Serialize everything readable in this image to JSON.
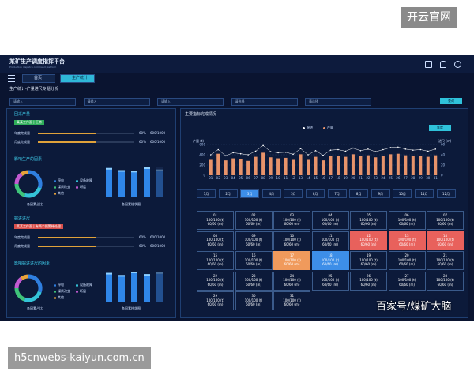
{
  "watermark_top": "开云官网",
  "watermark_bottom": "h5cnwebs-kaiyun.com.cn",
  "watermark_source": "百家号/煤矿大脑",
  "header": {
    "title": "某矿生产调度指挥平台",
    "subtitle": "Production dispatch command platform"
  },
  "tabs": [
    "首页",
    "生产统计"
  ],
  "active_tab": 1,
  "breadcrumb": "生产统计-产量进尺专题分析",
  "filters": [
    "请输入",
    "请输入",
    "请输入",
    "请选择",
    "请选择"
  ],
  "query_button": "查询",
  "left_panel": {
    "sections": [
      {
        "title": "回采产量",
        "tag": "某某工作面 | 正常",
        "tag_color": "#2fae5a",
        "progress": [
          {
            "label": "年度完成量",
            "percent": 60,
            "percent_label": "60%",
            "value_label": "600/1000"
          },
          {
            "label": "月度完成量",
            "percent": 60,
            "percent_label": "60%",
            "value_label": "600/1000"
          }
        ],
        "factor_title": "影响生产的因素",
        "legend": [
          "停电",
          "设备故障",
          "煤质改变",
          "断层",
          "其他"
        ],
        "colors": [
          "#2f7fe0",
          "#34c3d8",
          "#3fc47a",
          "#c25ad0",
          "#e8a33a"
        ],
        "donut": [
          30,
          25,
          20,
          15,
          10
        ],
        "bars": [
          95,
          88,
          86,
          97,
          90
        ],
        "donut_caption": "各因素占比",
        "bar_caption": "各因素柱状图"
      },
      {
        "title": "掘进进尺",
        "tag": "某某工作面 | 有两个报警待处理",
        "tag_color": "#d9504c",
        "progress": [
          {
            "label": "年度完成量",
            "percent": 60,
            "percent_label": "60%",
            "value_label": "600/1000"
          },
          {
            "label": "月度完成量",
            "percent": 60,
            "percent_label": "60%",
            "value_label": "600/1000"
          }
        ],
        "factor_title": "影响掘进进尺的因素",
        "legend": [
          "停电",
          "设备故障",
          "煤质改变",
          "断层",
          "其他"
        ],
        "colors": [
          "#2f7fe0",
          "#34c3d8",
          "#3fc47a",
          "#c25ad0",
          "#e8a33a"
        ],
        "donut": [
          30,
          25,
          20,
          15,
          10
        ],
        "bars": [
          92,
          85,
          96,
          88,
          94
        ],
        "donut_caption": "各因素占比",
        "bar_caption": "各因素柱状图"
      }
    ]
  },
  "chart_data": {
    "type": "bar_line",
    "title": "主要指标完成情况",
    "button": "年度",
    "y_label": "产量 (t)",
    "y2_label": "进尺 (m)",
    "categories": [
      "01",
      "02",
      "03",
      "04",
      "05",
      "06",
      "07",
      "08",
      "09",
      "10",
      "11",
      "12",
      "13",
      "14",
      "15",
      "16",
      "17",
      "18",
      "19",
      "20",
      "21",
      "22",
      "23",
      "24",
      "25",
      "26",
      "27",
      "28",
      "29",
      "30",
      "31"
    ],
    "series": [
      {
        "name": "掘进",
        "type": "line",
        "axis": "y2",
        "color": "#ffffff",
        "values": [
          40,
          50,
          38,
          44,
          42,
          40,
          47,
          58,
          46,
          44,
          45,
          41,
          52,
          40,
          48,
          39,
          49,
          50,
          47,
          53,
          48,
          51,
          46,
          50,
          54,
          55,
          51,
          49,
          50,
          47,
          51
        ]
      },
      {
        "name": "产量",
        "type": "bar",
        "color": "#e8936a",
        "values": [
          300,
          420,
          290,
          330,
          310,
          280,
          360,
          440,
          350,
          330,
          340,
          300,
          410,
          300,
          360,
          290,
          370,
          380,
          360,
          410,
          370,
          390,
          350,
          380,
          410,
          420,
          390,
          370,
          380,
          360,
          390
        ]
      }
    ],
    "ylim": [
      0,
      600
    ],
    "yticks": [
      0,
      200,
      400,
      600
    ],
    "y2lim": [
      0,
      60
    ],
    "y2ticks": [
      0,
      20,
      40,
      60
    ],
    "grid": true
  },
  "months": [
    "1月",
    "2月",
    "3月",
    "4月",
    "5月",
    "6月",
    "7月",
    "8月",
    "9月",
    "10月",
    "11月",
    "12月"
  ],
  "selected_month": 2,
  "calendar": [
    {
      "day": "01",
      "produced": "100/100 (t)",
      "advance": "60/60 (m)"
    },
    {
      "day": "02",
      "produced": "100/100 (t)",
      "advance": "60/60 (m)"
    },
    {
      "day": "03",
      "produced": "100/100 (t)",
      "advance": "60/60 (m)"
    },
    {
      "day": "04",
      "produced": "100/100 (t)",
      "advance": "60/60 (m)"
    },
    {
      "day": "05",
      "produced": "100/100 (t)",
      "advance": "60/60 (m)"
    },
    {
      "day": "06",
      "produced": "100/100 (t)",
      "advance": "60/60 (m)"
    },
    {
      "day": "07",
      "produced": "100/100 (t)",
      "advance": "60/60 (m)"
    },
    {
      "day": "08",
      "produced": "100/100 (t)",
      "advance": "60/60 (m)"
    },
    {
      "day": "09",
      "produced": "100/100 (t)",
      "advance": "60/60 (m)"
    },
    {
      "day": "10",
      "produced": "100/100 (t)",
      "advance": "60/60 (m)"
    },
    {
      "day": "11",
      "produced": "100/100 (t)",
      "advance": "60/60 (m)"
    },
    {
      "day": "12",
      "produced": "100/100 (t)",
      "advance": "60/60 (m)",
      "color": "#e8615c"
    },
    {
      "day": "13",
      "produced": "100/100 (t)",
      "advance": "60/60 (m)",
      "color": "#e8615c"
    },
    {
      "day": "14",
      "produced": "100/100 (t)",
      "advance": "60/60 (m)",
      "color": "#e8615c"
    },
    {
      "day": "15",
      "produced": "100/100 (t)",
      "advance": "60/60 (m)"
    },
    {
      "day": "16",
      "produced": "100/100 (t)",
      "advance": "60/60 (m)"
    },
    {
      "day": "17",
      "produced": "100/100 (t)",
      "advance": "60/60 (m)",
      "color": "#f09a5c"
    },
    {
      "day": "18",
      "produced": "100/100 (t)",
      "advance": "60/60 (m)",
      "color": "#3d8ee8"
    },
    {
      "day": "19",
      "produced": "100/100 (t)",
      "advance": "60/60 (m)"
    },
    {
      "day": "20",
      "produced": "100/100 (t)",
      "advance": "60/60 (m)"
    },
    {
      "day": "21",
      "produced": "100/100 (t)",
      "advance": "60/60 (m)"
    },
    {
      "day": "22",
      "produced": "100/100 (t)",
      "advance": "60/60 (m)"
    },
    {
      "day": "23",
      "produced": "100/100 (t)",
      "advance": "60/60 (m)"
    },
    {
      "day": "24",
      "produced": "100/100 (t)",
      "advance": "60/60 (m)"
    },
    {
      "day": "25",
      "produced": "100/100 (t)",
      "advance": "60/60 (m)"
    },
    {
      "day": "26",
      "produced": "100/100 (t)",
      "advance": "60/60 (m)"
    },
    {
      "day": "27",
      "produced": "100/100 (t)",
      "advance": "60/60 (m)"
    },
    {
      "day": "28",
      "produced": "100/100 (t)",
      "advance": "60/60 (m)"
    },
    {
      "day": "29",
      "produced": "100/100 (t)",
      "advance": "60/60 (m)"
    },
    {
      "day": "30",
      "produced": "100/100 (t)",
      "advance": "60/60 (m)"
    },
    {
      "day": "31",
      "produced": "100/100 (t)",
      "advance": "60/60 (m)"
    }
  ]
}
